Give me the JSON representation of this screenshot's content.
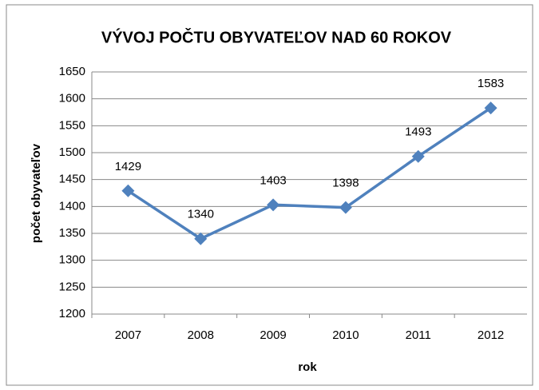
{
  "chart_data": {
    "type": "line",
    "title": "VÝVOJ POČTU OBYVATEĽOV NAD 60 ROKOV",
    "xlabel": "rok",
    "ylabel": "počet obyvateľov",
    "categories": [
      "2007",
      "2008",
      "2009",
      "2010",
      "2011",
      "2012"
    ],
    "values": [
      1429,
      1340,
      1403,
      1398,
      1493,
      1583
    ],
    "color": "#4f81bd",
    "ylim": [
      1200,
      1650
    ],
    "yticks": [
      1200,
      1250,
      1300,
      1350,
      1400,
      1450,
      1500,
      1550,
      1600,
      1650
    ],
    "grid": true
  }
}
